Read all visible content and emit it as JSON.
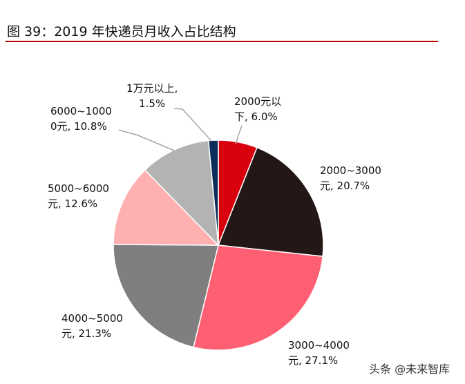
{
  "title": "图 39：2019 年快递员月收入占比结构",
  "watermark": "头条 @未来智库",
  "chart_data": {
    "type": "pie",
    "title": "图 39：2019 年快递员月收入占比结构",
    "start": "12 o'clock, clockwise",
    "slices": [
      {
        "label": [
          "2000元以",
          "下, 6.0%"
        ],
        "name": "2000元以下",
        "value": 6.0,
        "color": "#D9000D"
      },
      {
        "label": [
          "2000~3000",
          "元, 20.7%"
        ],
        "name": "2000~3000元",
        "value": 20.7,
        "color": "#231815"
      },
      {
        "label": [
          "3000~4000",
          "元, 27.1%"
        ],
        "name": "3000~4000元",
        "value": 27.1,
        "color": "#FF5F73"
      },
      {
        "label": [
          "4000~5000",
          "元, 21.3%"
        ],
        "name": "4000~5000元",
        "value": 21.3,
        "color": "#7F7F7F"
      },
      {
        "label": [
          "5000~6000",
          "元, 12.6%"
        ],
        "name": "5000~6000元",
        "value": 12.6,
        "color": "#FFB0B0"
      },
      {
        "label": [
          "6000~1000",
          "0元, 10.8%"
        ],
        "name": "6000~10000元",
        "value": 10.8,
        "color": "#B3B3B3"
      },
      {
        "label": [
          "1万元以上,",
          "1.5%"
        ],
        "name": "1万元以上",
        "value": 1.5,
        "color": "#0C2D5A"
      }
    ]
  }
}
